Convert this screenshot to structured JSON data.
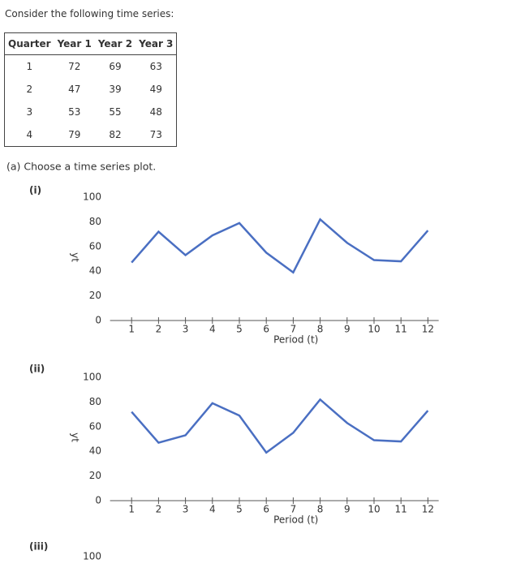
{
  "prompt": "Consider the following time series:",
  "table": {
    "columns": [
      "Quarter",
      "Year 1",
      "Year 2",
      "Year 3"
    ],
    "rows": [
      [
        1,
        72,
        69,
        63
      ],
      [
        2,
        47,
        39,
        49
      ],
      [
        3,
        53,
        55,
        48
      ],
      [
        4,
        79,
        82,
        73
      ]
    ]
  },
  "question": "(a) Choose a time series plot.",
  "options": [
    {
      "label": "(i)",
      "chart": {
        "type": "line",
        "x": [
          1,
          2,
          3,
          4,
          5,
          6,
          7,
          8,
          9,
          10,
          11,
          12
        ],
        "values": [
          47,
          72,
          53,
          69,
          79,
          55,
          39,
          82,
          63,
          49,
          48,
          73
        ],
        "color": "#4a6fc2",
        "xlim": [
          0.2,
          12.4
        ],
        "ylim": [
          0,
          100
        ],
        "xticks": [
          1,
          2,
          3,
          4,
          5,
          6,
          7,
          8,
          9,
          10,
          11,
          12
        ],
        "yticks": [
          0,
          20,
          40,
          60,
          80,
          100
        ],
        "ylabel": "yt",
        "xlabel": "Period (t)"
      }
    },
    {
      "label": "(ii)",
      "chart": {
        "type": "line",
        "x": [
          1,
          2,
          3,
          4,
          5,
          6,
          7,
          8,
          9,
          10,
          11,
          12
        ],
        "values": [
          72,
          47,
          53,
          79,
          69,
          39,
          55,
          82,
          63,
          49,
          48,
          73
        ],
        "color": "#4a6fc2",
        "xlim": [
          0.2,
          12.4
        ],
        "ylim": [
          0,
          100
        ],
        "xticks": [
          1,
          2,
          3,
          4,
          5,
          6,
          7,
          8,
          9,
          10,
          11,
          12
        ],
        "yticks": [
          0,
          20,
          40,
          60,
          80,
          100
        ],
        "ylabel": "yt",
        "xlabel": "Period (t)"
      }
    },
    {
      "label": "(iii)",
      "chart": {
        "ylim": [
          0,
          100
        ],
        "yticks": [
          100
        ]
      }
    }
  ]
}
